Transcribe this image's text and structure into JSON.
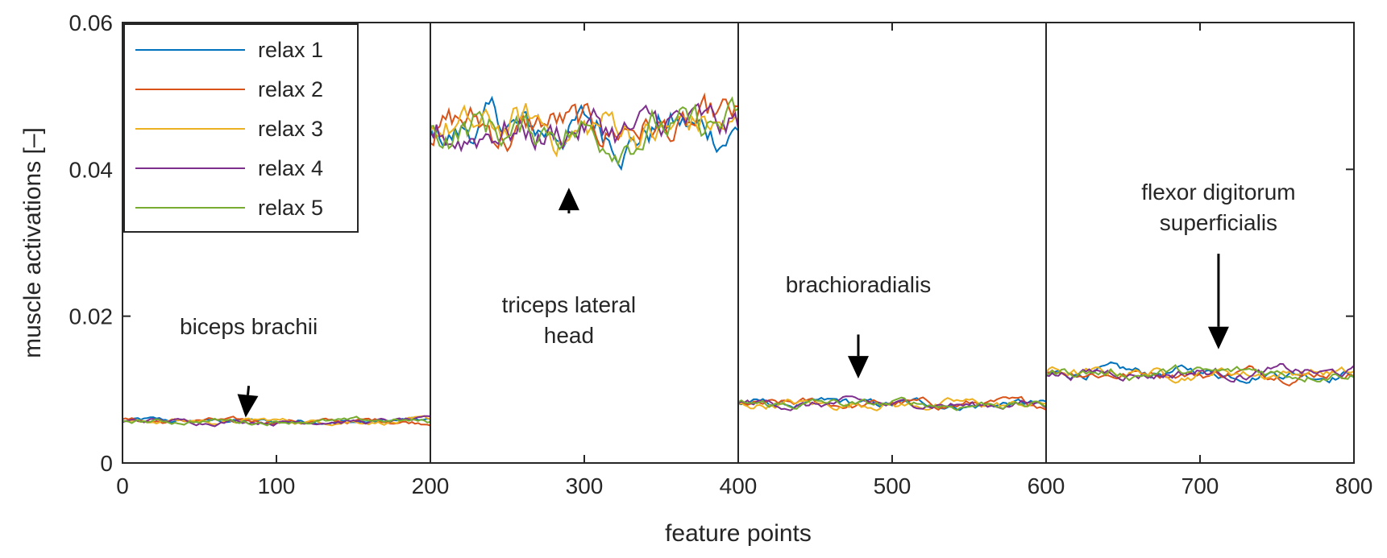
{
  "chart_data": {
    "type": "line",
    "title": "",
    "xlabel": "feature points",
    "ylabel": "muscle activations [–]",
    "xlim": [
      0,
      800
    ],
    "ylim": [
      0,
      0.06
    ],
    "xticks": [
      0,
      100,
      200,
      300,
      400,
      500,
      600,
      700,
      800
    ],
    "xtick_labels": [
      "0",
      "100",
      "200",
      "300",
      "400",
      "500",
      "600",
      "700",
      "800"
    ],
    "yticks": [
      0,
      0.02,
      0.04,
      0.06
    ],
    "ytick_labels": [
      "0",
      "0.02",
      "0.04",
      "0.06"
    ],
    "grid": false,
    "legend_position": "top-left",
    "segment_dividers": [
      200,
      400,
      600
    ],
    "series": [
      {
        "name": "relax 1",
        "color": "#0072BD"
      },
      {
        "name": "relax 2",
        "color": "#D95319"
      },
      {
        "name": "relax 3",
        "color": "#EDB120"
      },
      {
        "name": "relax 4",
        "color": "#7E2F8E"
      },
      {
        "name": "relax 5",
        "color": "#77AC30"
      }
    ],
    "segments": [
      {
        "x_range": [
          0,
          200
        ],
        "level": 0.0057,
        "amplitude": 0.0006
      },
      {
        "x_range": [
          200,
          400
        ],
        "level": 0.0455,
        "amplitude": 0.0045
      },
      {
        "x_range": [
          400,
          600
        ],
        "level": 0.008,
        "amplitude": 0.001
      },
      {
        "x_range": [
          600,
          800
        ],
        "level": 0.0123,
        "amplitude": 0.0012
      }
    ],
    "annotations": [
      {
        "lines": [
          "biceps brachii"
        ],
        "arrow_to": [
          80,
          0.0062
        ]
      },
      {
        "lines": [
          "triceps lateral",
          "head"
        ],
        "arrow_to": [
          290,
          0.0375
        ]
      },
      {
        "lines": [
          "brachioradialis"
        ],
        "arrow_to": [
          478,
          0.0115
        ]
      },
      {
        "lines": [
          "flexor digitorum",
          "superficialis"
        ],
        "arrow_to": [
          712,
          0.0155
        ]
      }
    ]
  }
}
